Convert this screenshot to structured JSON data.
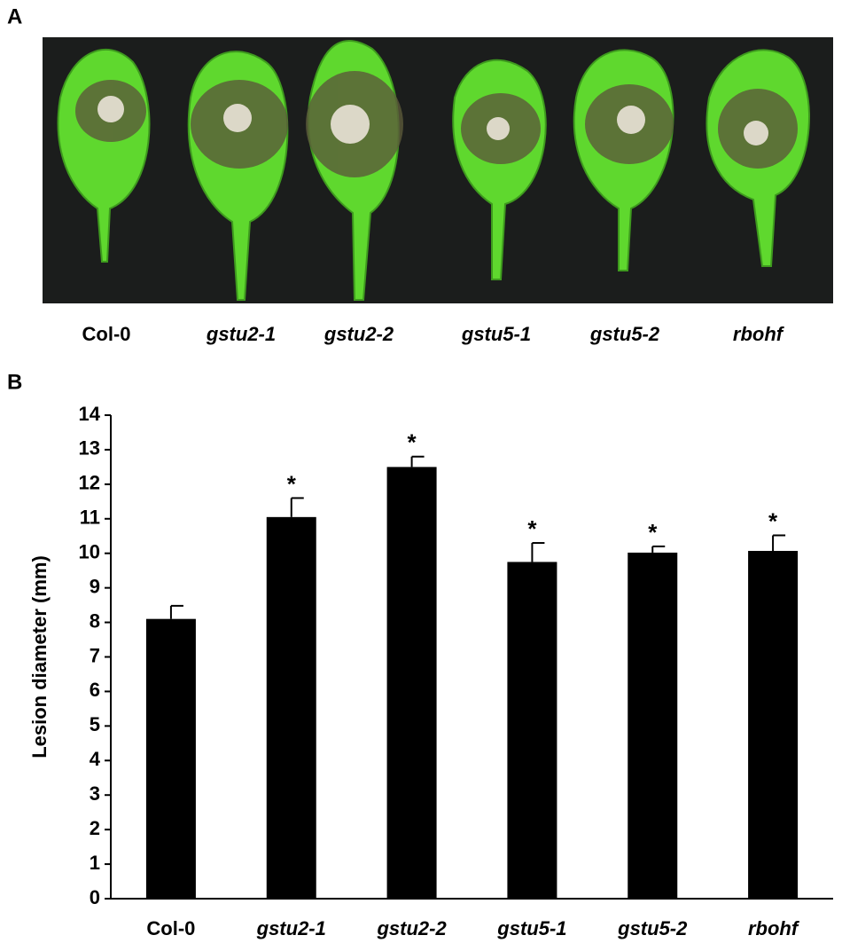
{
  "panel_a": {
    "label": "A",
    "labels": [
      "Col-0",
      "gstu2-1",
      "gstu2-2",
      "gstu5-1",
      "gstu5-2",
      "rbohf"
    ]
  },
  "panel_b_label": "B",
  "chart_data": {
    "type": "bar",
    "ylabel": "Lesion diameter (mm)",
    "categories": [
      "Col-0",
      "gstu2-1",
      "gstu2-2",
      "gstu5-1",
      "gstu5-2",
      "rbohf"
    ],
    "values": [
      8.1,
      11.05,
      12.5,
      9.75,
      10.02,
      10.07
    ],
    "errors": [
      0.38,
      0.55,
      0.3,
      0.55,
      0.18,
      0.45
    ],
    "annotations": [
      null,
      "*",
      "*",
      "*",
      "*",
      "*"
    ],
    "color": "#000000",
    "ylim": [
      0,
      14
    ],
    "yticks": [
      0,
      1,
      2,
      3,
      4,
      5,
      6,
      7,
      8,
      9,
      10,
      11,
      12,
      13,
      14
    ],
    "grid": false
  }
}
